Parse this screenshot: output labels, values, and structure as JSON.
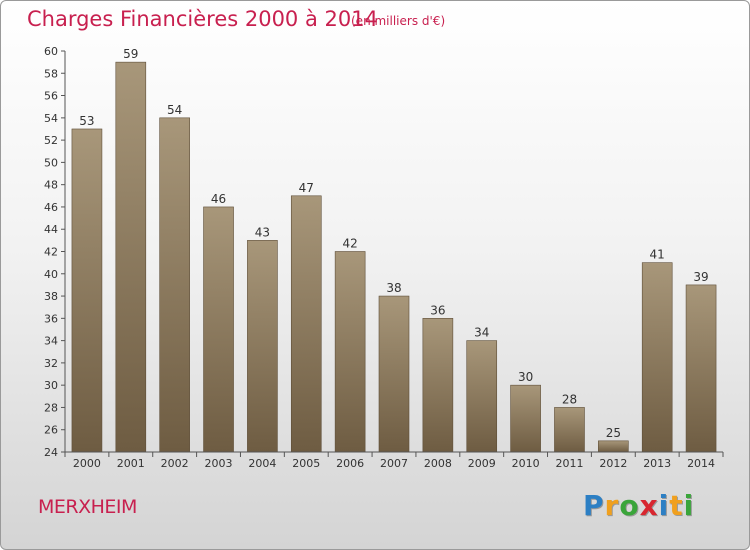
{
  "header": {
    "title": "Charges Financières 2000 à 2014",
    "subtitle": "(en milliers d'€)"
  },
  "footer": {
    "commune": "MERXHEIM",
    "brand_letters": [
      "P",
      "r",
      "o",
      "x",
      "i",
      "t",
      "i"
    ],
    "brand_colors": [
      "#2c7fc4",
      "#f0a01e",
      "#3aa53a",
      "#d8262f",
      "#2c7fc4",
      "#f0a01e",
      "#3aa53a"
    ]
  },
  "colors": {
    "title": "#c8204f",
    "bar_light": "#a8977a",
    "bar_dark": "#6e5c42",
    "axis": "#555555"
  },
  "chart_data": {
    "type": "bar",
    "categories": [
      "2000",
      "2001",
      "2002",
      "2003",
      "2004",
      "2005",
      "2006",
      "2007",
      "2008",
      "2009",
      "2010",
      "2011",
      "2012",
      "2013",
      "2014"
    ],
    "values": [
      53,
      59,
      54,
      46,
      43,
      47,
      42,
      38,
      36,
      34,
      30,
      28,
      25,
      41,
      39
    ],
    "ylim": [
      24,
      60
    ],
    "yticks": [
      24,
      26,
      28,
      30,
      32,
      34,
      36,
      38,
      40,
      42,
      44,
      46,
      48,
      50,
      52,
      54,
      56,
      58,
      60
    ],
    "grid": false,
    "legend": "none"
  }
}
